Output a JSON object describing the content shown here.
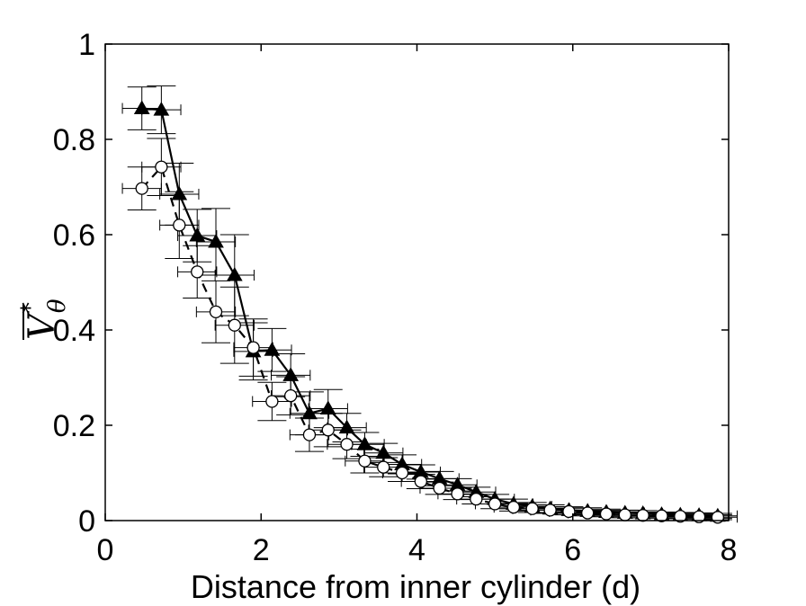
{
  "chart_data": {
    "type": "scatter",
    "title": "",
    "xlabel": "Distance from inner cylinder (d)",
    "ylabel": {
      "base": "V",
      "superscript": "*",
      "subscript": "θ"
    },
    "xlim": [
      0,
      8
    ],
    "ylim": [
      0,
      1
    ],
    "xticks": [
      "0",
      "2",
      "4",
      "6",
      "8"
    ],
    "yticks": [
      "0",
      "0.2",
      "0.4",
      "0.6",
      "0.8",
      "1"
    ],
    "grid": false,
    "series": [
      {
        "marker": "filled-triangle",
        "line": "solid",
        "color": "#000000",
        "x": [
          0.47,
          0.72,
          0.95,
          1.18,
          1.42,
          1.66,
          1.9,
          2.14,
          2.38,
          2.62,
          2.86,
          3.1,
          3.33,
          3.57,
          3.81,
          4.05,
          4.29,
          4.52,
          4.76,
          5.0,
          5.24,
          5.48,
          5.71,
          5.95,
          6.19,
          6.43,
          6.67,
          6.9,
          7.14,
          7.38,
          7.62,
          7.86
        ],
        "y": [
          0.865,
          0.862,
          0.685,
          0.598,
          0.585,
          0.515,
          0.355,
          0.358,
          0.305,
          0.225,
          0.235,
          0.195,
          0.16,
          0.142,
          0.118,
          0.102,
          0.088,
          0.075,
          0.06,
          0.045,
          0.035,
          0.03,
          0.025,
          0.022,
          0.02,
          0.018,
          0.016,
          0.015,
          0.013,
          0.012,
          0.011,
          0.01
        ],
        "xerr": [
          0.25,
          0.25,
          0.25,
          0.25,
          0.25,
          0.25,
          0.25,
          0.25,
          0.25,
          0.25,
          0.25,
          0.25,
          0.25,
          0.25,
          0.25,
          0.25,
          0.25,
          0.25,
          0.25,
          0.25,
          0.25,
          0.25,
          0.25,
          0.25,
          0.25,
          0.25,
          0.25,
          0.25,
          0.25,
          0.25,
          0.25,
          0.25
        ],
        "yerr": [
          0.045,
          0.05,
          0.065,
          0.055,
          0.07,
          0.085,
          0.06,
          0.045,
          0.045,
          0.045,
          0.04,
          0.03,
          0.025,
          0.02,
          0.02,
          0.015,
          0.015,
          0.013,
          0.01,
          0.01,
          0.01,
          0.008,
          0.008,
          0.007,
          0.007,
          0.006,
          0.006,
          0.006,
          0.005,
          0.005,
          0.005,
          0.005
        ]
      },
      {
        "marker": "open-circle",
        "line": "dashed",
        "color": "#000000",
        "x": [
          0.47,
          0.72,
          0.95,
          1.18,
          1.42,
          1.66,
          1.9,
          2.14,
          2.38,
          2.62,
          2.86,
          3.1,
          3.33,
          3.57,
          3.81,
          4.05,
          4.29,
          4.52,
          4.76,
          5.0,
          5.24,
          5.48,
          5.71,
          5.95,
          6.19,
          6.43,
          6.67,
          6.9,
          7.14,
          7.38,
          7.62,
          7.86
        ],
        "y": [
          0.697,
          0.742,
          0.62,
          0.522,
          0.438,
          0.41,
          0.363,
          0.25,
          0.262,
          0.18,
          0.19,
          0.16,
          0.125,
          0.112,
          0.1,
          0.082,
          0.068,
          0.056,
          0.045,
          0.035,
          0.028,
          0.025,
          0.022,
          0.019,
          0.016,
          0.014,
          0.012,
          0.011,
          0.01,
          0.009,
          0.008,
          0.007
        ],
        "xerr": [
          0.25,
          0.25,
          0.25,
          0.25,
          0.25,
          0.25,
          0.25,
          0.25,
          0.25,
          0.25,
          0.25,
          0.25,
          0.25,
          0.25,
          0.25,
          0.25,
          0.25,
          0.25,
          0.25,
          0.25,
          0.25,
          0.25,
          0.25,
          0.25,
          0.25,
          0.25,
          0.25,
          0.25,
          0.25,
          0.25,
          0.25,
          0.25
        ],
        "yerr": [
          0.045,
          0.06,
          0.07,
          0.055,
          0.065,
          0.08,
          0.06,
          0.04,
          0.04,
          0.035,
          0.035,
          0.03,
          0.025,
          0.02,
          0.018,
          0.015,
          0.013,
          0.012,
          0.01,
          0.01,
          0.008,
          0.008,
          0.007,
          0.007,
          0.006,
          0.006,
          0.006,
          0.005,
          0.005,
          0.005,
          0.005,
          0.005
        ]
      }
    ]
  }
}
